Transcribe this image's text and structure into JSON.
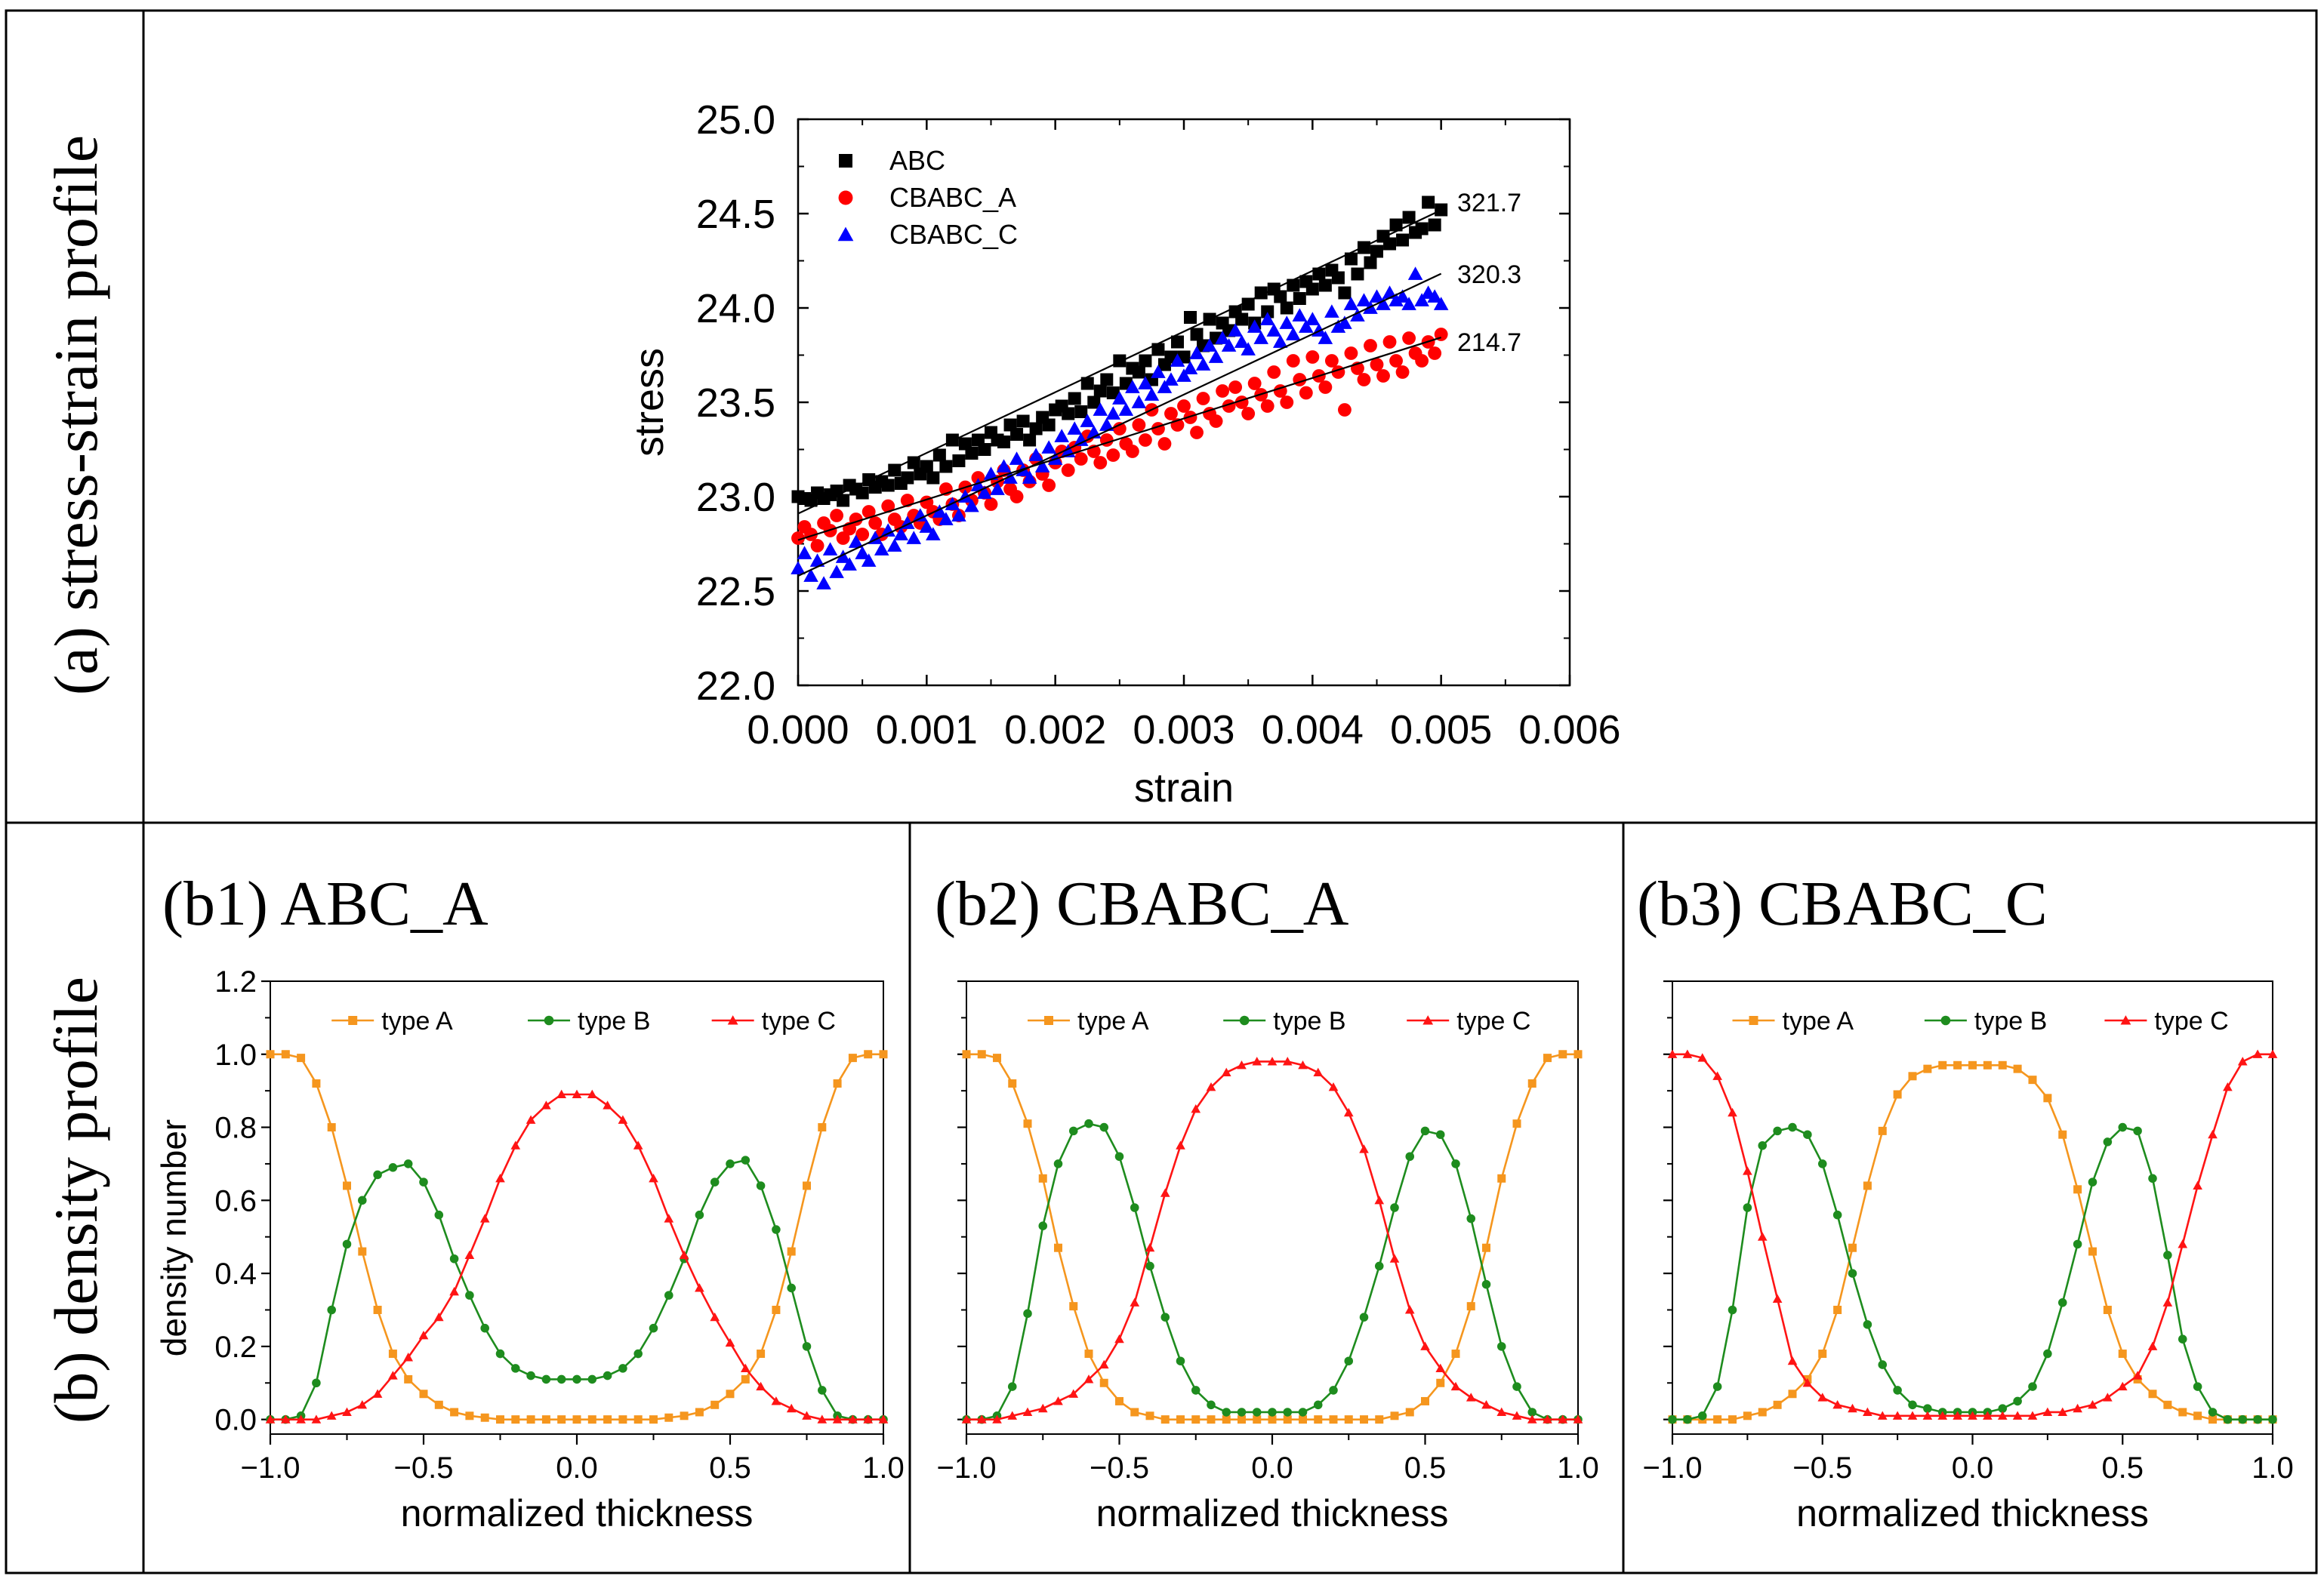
{
  "panel_labels": {
    "row_a": "(a) stress-strain profile",
    "row_b": "(b) density profile"
  },
  "chart_data": [
    {
      "id": "a",
      "type": "scatter",
      "title": "",
      "xlabel": "strain",
      "ylabel": "stress",
      "xlim": [
        0.0,
        0.006
      ],
      "ylim": [
        22.0,
        25.0
      ],
      "xticks": [
        "0.000",
        "0.001",
        "0.002",
        "0.003",
        "0.004",
        "0.005",
        "0.006"
      ],
      "yticks": [
        "22.0",
        "22.5",
        "23.0",
        "23.5",
        "24.0",
        "24.5",
        "25.0"
      ],
      "legend_position": "top-left",
      "point_count": 101,
      "x_step": 5e-05,
      "series": [
        {
          "name": "ABC",
          "color": "#000000",
          "marker": "square",
          "fit": {
            "intercept": 22.91,
            "slope": 321.7,
            "label": "321.7"
          },
          "values": [
            23.0,
            22.99,
            22.98,
            23.02,
            22.99,
            23.01,
            23.03,
            22.98,
            23.06,
            23.04,
            23.02,
            23.09,
            23.05,
            23.08,
            23.06,
            23.14,
            23.07,
            23.1,
            23.18,
            23.12,
            23.16,
            23.1,
            23.22,
            23.16,
            23.3,
            23.19,
            23.28,
            23.23,
            23.3,
            23.25,
            23.34,
            23.3,
            23.29,
            23.38,
            23.33,
            23.4,
            23.3,
            23.36,
            23.42,
            23.38,
            23.46,
            23.48,
            23.44,
            23.52,
            23.45,
            23.6,
            23.5,
            23.56,
            23.62,
            23.55,
            23.72,
            23.6,
            23.68,
            23.66,
            23.72,
            23.62,
            23.78,
            23.7,
            23.74,
            23.82,
            23.74,
            23.95,
            23.86,
            23.8,
            23.94,
            23.84,
            23.92,
            23.88,
            23.98,
            23.94,
            24.02,
            23.92,
            24.08,
            23.98,
            24.1,
            24.06,
            24.0,
            24.12,
            24.05,
            24.14,
            24.1,
            24.18,
            24.12,
            24.2,
            24.16,
            24.08,
            24.26,
            24.18,
            24.32,
            24.24,
            24.3,
            24.38,
            24.34,
            24.44,
            24.36,
            24.48,
            24.4,
            24.42,
            24.56,
            24.44,
            24.52
          ]
        },
        {
          "name": "CBABC_A",
          "color": "#ff0000",
          "marker": "circle",
          "fit": {
            "intercept": 22.77,
            "slope": 214.7,
            "label": "214.7"
          },
          "values": [
            22.78,
            22.84,
            22.8,
            22.74,
            22.86,
            22.82,
            22.9,
            22.78,
            22.83,
            22.88,
            22.8,
            22.92,
            22.86,
            22.8,
            22.95,
            22.88,
            22.84,
            22.98,
            22.9,
            22.86,
            22.97,
            22.92,
            22.88,
            23.04,
            22.96,
            22.9,
            23.05,
            22.98,
            23.1,
            23.02,
            22.96,
            23.08,
            23.14,
            23.04,
            23.0,
            23.14,
            23.08,
            23.2,
            23.12,
            23.06,
            23.18,
            23.24,
            23.14,
            23.26,
            23.2,
            23.32,
            23.24,
            23.18,
            23.3,
            23.22,
            23.36,
            23.28,
            23.24,
            23.38,
            23.3,
            23.46,
            23.36,
            23.28,
            23.44,
            23.38,
            23.48,
            23.42,
            23.34,
            23.52,
            23.44,
            23.4,
            23.56,
            23.48,
            23.58,
            23.5,
            23.44,
            23.6,
            23.54,
            23.48,
            23.66,
            23.56,
            23.5,
            23.72,
            23.62,
            23.55,
            23.74,
            23.64,
            23.58,
            23.72,
            23.66,
            23.46,
            23.76,
            23.68,
            23.62,
            23.8,
            23.7,
            23.64,
            23.82,
            23.72,
            23.66,
            23.84,
            23.76,
            23.72,
            23.82,
            23.76,
            23.86
          ]
        },
        {
          "name": "CBABC_C",
          "color": "#0000ff",
          "marker": "triangle",
          "fit": {
            "intercept": 22.58,
            "slope": 320.3,
            "label": "320.3"
          },
          "values": [
            22.62,
            22.7,
            22.58,
            22.66,
            22.54,
            22.72,
            22.6,
            22.68,
            22.64,
            22.76,
            22.7,
            22.66,
            22.78,
            22.72,
            22.82,
            22.74,
            22.8,
            22.86,
            22.78,
            22.9,
            22.84,
            22.8,
            22.92,
            22.88,
            22.96,
            22.9,
            23.0,
            22.95,
            23.06,
            23.02,
            23.12,
            23.04,
            23.16,
            23.1,
            23.2,
            23.14,
            23.1,
            23.22,
            23.16,
            23.26,
            23.2,
            23.32,
            23.24,
            23.36,
            23.3,
            23.4,
            23.34,
            23.46,
            23.38,
            23.44,
            23.52,
            23.46,
            23.58,
            23.5,
            23.6,
            23.54,
            23.66,
            23.58,
            23.62,
            23.72,
            23.64,
            23.68,
            23.76,
            23.7,
            23.8,
            23.74,
            23.84,
            23.8,
            23.88,
            23.82,
            23.78,
            23.9,
            23.84,
            23.94,
            23.88,
            23.82,
            23.92,
            23.86,
            23.96,
            23.9,
            23.94,
            23.88,
            23.84,
            23.98,
            23.9,
            23.92,
            24.02,
            23.96,
            24.04,
            24.0,
            24.06,
            24.02,
            24.08,
            24.04,
            24.06,
            24.02,
            24.18,
            24.04,
            24.08,
            24.06,
            24.02
          ]
        }
      ]
    },
    {
      "id": "b1",
      "type": "line",
      "title": "(b1) ABC_A",
      "xlabel": "normalized thickness",
      "ylabel": "density number",
      "xlim": [
        -1.0,
        1.0
      ],
      "ylim": [
        -0.04,
        1.2
      ],
      "xticks": [
        "−1.0",
        "−0.5",
        "0.0",
        "0.5",
        "1.0"
      ],
      "yticks": [
        "0.0",
        "0.2",
        "0.4",
        "0.6",
        "0.8",
        "1.0",
        "1.2"
      ],
      "legend_position": "top",
      "x": [
        -1.0,
        -0.95,
        -0.9,
        -0.85,
        -0.8,
        -0.75,
        -0.7,
        -0.65,
        -0.6,
        -0.55,
        -0.5,
        -0.45,
        -0.4,
        -0.35,
        -0.3,
        -0.25,
        -0.2,
        -0.15,
        -0.1,
        -0.05,
        0.0,
        0.05,
        0.1,
        0.15,
        0.2,
        0.25,
        0.3,
        0.35,
        0.4,
        0.45,
        0.5,
        0.55,
        0.6,
        0.65,
        0.7,
        0.75,
        0.8,
        0.85,
        0.9,
        0.95,
        1.0
      ],
      "series": [
        {
          "name": "type A",
          "color": "#f5961e",
          "marker": "square",
          "values": [
            1.0,
            1.0,
            0.99,
            0.92,
            0.8,
            0.64,
            0.46,
            0.3,
            0.18,
            0.11,
            0.07,
            0.04,
            0.02,
            0.01,
            0.005,
            0.0,
            0.0,
            0.0,
            0.0,
            0.0,
            0.0,
            0.0,
            0.0,
            0.0,
            0.0,
            0.0,
            0.005,
            0.01,
            0.02,
            0.04,
            0.07,
            0.11,
            0.18,
            0.3,
            0.46,
            0.64,
            0.8,
            0.92,
            0.99,
            1.0,
            1.0
          ]
        },
        {
          "name": "type B",
          "color": "#1e8c1e",
          "marker": "circle",
          "values": [
            0.0,
            0.0,
            0.01,
            0.1,
            0.3,
            0.48,
            0.6,
            0.67,
            0.69,
            0.7,
            0.65,
            0.56,
            0.44,
            0.34,
            0.25,
            0.18,
            0.14,
            0.12,
            0.11,
            0.11,
            0.11,
            0.11,
            0.12,
            0.14,
            0.18,
            0.25,
            0.34,
            0.44,
            0.56,
            0.65,
            0.7,
            0.71,
            0.64,
            0.52,
            0.36,
            0.2,
            0.08,
            0.01,
            0.0,
            0.0,
            0.0
          ]
        },
        {
          "name": "type C",
          "color": "#ff1414",
          "marker": "triangle",
          "values": [
            0.0,
            0.0,
            0.0,
            0.0,
            0.01,
            0.02,
            0.04,
            0.07,
            0.12,
            0.17,
            0.23,
            0.28,
            0.35,
            0.45,
            0.55,
            0.66,
            0.75,
            0.82,
            0.86,
            0.89,
            0.89,
            0.89,
            0.86,
            0.82,
            0.75,
            0.66,
            0.55,
            0.45,
            0.36,
            0.28,
            0.21,
            0.14,
            0.09,
            0.05,
            0.03,
            0.01,
            0.0,
            0.0,
            0.0,
            0.0,
            0.0
          ]
        }
      ]
    },
    {
      "id": "b2",
      "type": "line",
      "title": "(b2) CBABC_A",
      "xlabel": "normalized thickness",
      "ylabel": "",
      "xlim": [
        -1.0,
        1.0
      ],
      "ylim": [
        -0.04,
        1.2
      ],
      "xticks": [
        "−1.0",
        "−0.5",
        "0.0",
        "0.5",
        "1.0"
      ],
      "yticks": [],
      "legend_position": "top",
      "x": [
        -1.0,
        -0.95,
        -0.9,
        -0.85,
        -0.8,
        -0.75,
        -0.7,
        -0.65,
        -0.6,
        -0.55,
        -0.5,
        -0.45,
        -0.4,
        -0.35,
        -0.3,
        -0.25,
        -0.2,
        -0.15,
        -0.1,
        -0.05,
        0.0,
        0.05,
        0.1,
        0.15,
        0.2,
        0.25,
        0.3,
        0.35,
        0.4,
        0.45,
        0.5,
        0.55,
        0.6,
        0.65,
        0.7,
        0.75,
        0.8,
        0.85,
        0.9,
        0.95,
        1.0
      ],
      "series": [
        {
          "name": "type A",
          "color": "#f5961e",
          "marker": "square",
          "values": [
            1.0,
            1.0,
            0.99,
            0.92,
            0.81,
            0.66,
            0.47,
            0.31,
            0.18,
            0.1,
            0.05,
            0.02,
            0.01,
            0.0,
            0.0,
            0.0,
            0.0,
            0.0,
            0.0,
            0.0,
            0.0,
            0.0,
            0.0,
            0.0,
            0.0,
            0.0,
            0.0,
            0.0,
            0.01,
            0.02,
            0.05,
            0.1,
            0.18,
            0.31,
            0.47,
            0.66,
            0.81,
            0.92,
            0.99,
            1.0,
            1.0
          ]
        },
        {
          "name": "type B",
          "color": "#1e8c1e",
          "marker": "circle",
          "values": [
            0.0,
            0.0,
            0.01,
            0.09,
            0.29,
            0.53,
            0.7,
            0.79,
            0.81,
            0.8,
            0.72,
            0.58,
            0.42,
            0.28,
            0.16,
            0.08,
            0.04,
            0.02,
            0.02,
            0.02,
            0.02,
            0.02,
            0.02,
            0.04,
            0.08,
            0.16,
            0.28,
            0.42,
            0.58,
            0.72,
            0.79,
            0.78,
            0.7,
            0.55,
            0.37,
            0.2,
            0.09,
            0.02,
            0.0,
            0.0,
            0.0
          ]
        },
        {
          "name": "type C",
          "color": "#ff1414",
          "marker": "triangle",
          "values": [
            0.0,
            0.0,
            0.0,
            0.01,
            0.02,
            0.03,
            0.05,
            0.07,
            0.11,
            0.15,
            0.22,
            0.32,
            0.47,
            0.62,
            0.75,
            0.85,
            0.91,
            0.95,
            0.97,
            0.98,
            0.98,
            0.98,
            0.97,
            0.95,
            0.91,
            0.84,
            0.74,
            0.6,
            0.44,
            0.3,
            0.2,
            0.14,
            0.09,
            0.06,
            0.04,
            0.02,
            0.01,
            0.0,
            0.0,
            0.0,
            0.0
          ]
        }
      ]
    },
    {
      "id": "b3",
      "type": "line",
      "title": "(b3) CBABC_C",
      "xlabel": "normalized thickness",
      "ylabel": "",
      "xlim": [
        -1.0,
        1.0
      ],
      "ylim": [
        -0.04,
        1.2
      ],
      "xticks": [
        "−1.0",
        "−0.5",
        "0.0",
        "0.5",
        "1.0"
      ],
      "yticks": [],
      "legend_position": "top",
      "x": [
        -1.0,
        -0.95,
        -0.9,
        -0.85,
        -0.8,
        -0.75,
        -0.7,
        -0.65,
        -0.6,
        -0.55,
        -0.5,
        -0.45,
        -0.4,
        -0.35,
        -0.3,
        -0.25,
        -0.2,
        -0.15,
        -0.1,
        -0.05,
        0.0,
        0.05,
        0.1,
        0.15,
        0.2,
        0.25,
        0.3,
        0.35,
        0.4,
        0.45,
        0.5,
        0.55,
        0.6,
        0.65,
        0.7,
        0.75,
        0.8,
        0.85,
        0.9,
        0.95,
        1.0
      ],
      "series": [
        {
          "name": "type A",
          "color": "#f5961e",
          "marker": "square",
          "values": [
            0.0,
            0.0,
            0.0,
            0.0,
            0.0,
            0.01,
            0.02,
            0.04,
            0.07,
            0.11,
            0.18,
            0.3,
            0.47,
            0.64,
            0.79,
            0.89,
            0.94,
            0.96,
            0.97,
            0.97,
            0.97,
            0.97,
            0.97,
            0.96,
            0.93,
            0.88,
            0.78,
            0.63,
            0.46,
            0.3,
            0.18,
            0.11,
            0.07,
            0.04,
            0.02,
            0.01,
            0.0,
            0.0,
            0.0,
            0.0,
            0.0
          ]
        },
        {
          "name": "type B",
          "color": "#1e8c1e",
          "marker": "circle",
          "values": [
            0.0,
            0.0,
            0.01,
            0.09,
            0.3,
            0.58,
            0.75,
            0.79,
            0.8,
            0.78,
            0.7,
            0.56,
            0.4,
            0.26,
            0.15,
            0.08,
            0.04,
            0.03,
            0.02,
            0.02,
            0.02,
            0.02,
            0.03,
            0.05,
            0.09,
            0.18,
            0.32,
            0.48,
            0.65,
            0.76,
            0.8,
            0.79,
            0.66,
            0.45,
            0.22,
            0.09,
            0.02,
            0.0,
            0.0,
            0.0,
            0.0
          ]
        },
        {
          "name": "type C",
          "color": "#ff1414",
          "marker": "triangle",
          "values": [
            1.0,
            1.0,
            0.99,
            0.94,
            0.84,
            0.68,
            0.5,
            0.33,
            0.16,
            0.1,
            0.06,
            0.04,
            0.03,
            0.02,
            0.01,
            0.01,
            0.01,
            0.01,
            0.01,
            0.01,
            0.01,
            0.01,
            0.01,
            0.01,
            0.01,
            0.02,
            0.02,
            0.03,
            0.04,
            0.06,
            0.09,
            0.12,
            0.2,
            0.32,
            0.48,
            0.64,
            0.78,
            0.91,
            0.98,
            1.0,
            1.0
          ]
        }
      ]
    }
  ]
}
